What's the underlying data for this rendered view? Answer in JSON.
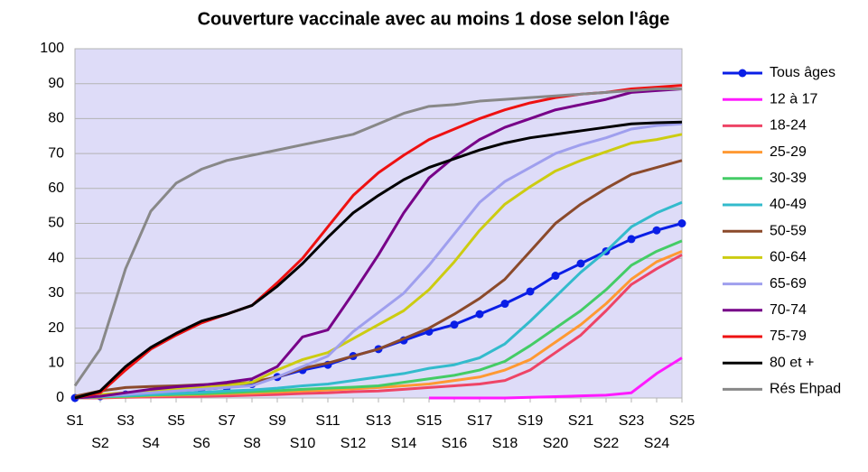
{
  "chart_data": {
    "type": "line",
    "title": "Couverture vaccinale avec au moins 1 dose selon l'âge",
    "categories": [
      "S1",
      "S2",
      "S3",
      "S4",
      "S5",
      "S6",
      "S7",
      "S8",
      "S9",
      "S10",
      "S11",
      "S12",
      "S13",
      "S14",
      "S15",
      "S16",
      "S17",
      "S18",
      "S19",
      "S20",
      "S21",
      "S22",
      "S23",
      "S24",
      "S25"
    ],
    "ylim": [
      0,
      100
    ],
    "yticks": [
      0,
      10,
      20,
      30,
      40,
      50,
      60,
      70,
      80,
      90,
      100
    ],
    "grid": true,
    "legend": "right",
    "plot_background": "#dedcf8",
    "series": [
      {
        "name": "Tous âges",
        "color": "#0a1ee6",
        "marker": "circle",
        "values": [
          0,
          0.5,
          1,
          1.5,
          2,
          2.5,
          3,
          4,
          6,
          8,
          9.5,
          12,
          14,
          16.5,
          19,
          21,
          24,
          27,
          30.5,
          35,
          38.5,
          42,
          45.5,
          48,
          50
        ]
      },
      {
        "name": "12 à 17",
        "color": "#ff1aff",
        "values": [
          null,
          null,
          null,
          null,
          null,
          null,
          null,
          null,
          null,
          null,
          null,
          null,
          null,
          null,
          0,
          0,
          0,
          0,
          0.2,
          0.4,
          0.6,
          0.8,
          1.5,
          7,
          11.5
        ]
      },
      {
        "name": "18-24",
        "color": "#ee4466",
        "values": [
          0,
          0,
          0.2,
          0.3,
          0.4,
          0.5,
          0.6,
          0.8,
          1,
          1.3,
          1.5,
          1.8,
          2,
          2.5,
          3,
          3.5,
          4,
          5,
          8,
          13,
          18,
          25,
          32.5,
          37,
          41
        ]
      },
      {
        "name": "25-29",
        "color": "#ff9933",
        "values": [
          0,
          0.2,
          0.4,
          0.6,
          0.8,
          1,
          1.2,
          1.4,
          1.7,
          2,
          2.3,
          2.6,
          3,
          3.5,
          4,
          5,
          6,
          8,
          11,
          16,
          21,
          27,
          34,
          39,
          42
        ]
      },
      {
        "name": "30-39",
        "color": "#44cc66",
        "values": [
          0,
          0.3,
          0.5,
          0.8,
          1,
          1.2,
          1.5,
          1.8,
          2.1,
          2.5,
          2.8,
          3.1,
          3.5,
          4.5,
          5.5,
          6.5,
          8,
          10.5,
          15,
          20,
          25,
          31,
          38,
          42,
          45
        ]
      },
      {
        "name": "40-49",
        "color": "#33bbcc",
        "values": [
          0,
          0.4,
          0.7,
          1,
          1.3,
          1.6,
          2,
          2.3,
          2.8,
          3.5,
          4,
          5,
          6,
          7,
          8.5,
          9.5,
          11.5,
          15.5,
          22,
          29,
          36,
          42,
          49,
          53,
          56
        ]
      },
      {
        "name": "50-59",
        "color": "#8b4a2b",
        "values": [
          0.5,
          2,
          3,
          3.3,
          3.5,
          3.8,
          4,
          4.5,
          6,
          8.5,
          10,
          12,
          14,
          17,
          20,
          24,
          28.5,
          34,
          42,
          50,
          55.5,
          60,
          64,
          66,
          68
        ]
      },
      {
        "name": "60-64",
        "color": "#cccc11",
        "values": [
          0,
          1,
          1.5,
          2,
          2.5,
          3,
          3.5,
          4.5,
          8,
          11,
          13,
          17,
          21,
          25,
          31,
          39,
          48,
          55.5,
          60.5,
          65,
          68,
          70.5,
          73,
          74,
          75.5
        ]
      },
      {
        "name": "65-69",
        "color": "#9f9fee",
        "values": [
          0,
          0.5,
          1,
          1.5,
          2,
          2.5,
          3,
          3.5,
          6,
          9,
          12,
          19,
          24.5,
          30,
          38,
          47,
          56,
          62,
          66,
          70,
          72.5,
          74.5,
          77,
          78,
          78.5
        ]
      },
      {
        "name": "70-74",
        "color": "#770088",
        "values": [
          0,
          0.5,
          1.5,
          2.5,
          3.2,
          3.7,
          4.5,
          5.5,
          9,
          17.5,
          19.5,
          30,
          41,
          53,
          63,
          69,
          74,
          77.5,
          80,
          82.5,
          84,
          85.5,
          87.5,
          88,
          88.5
        ]
      },
      {
        "name": "75-79",
        "color": "#ee1111",
        "values": [
          0,
          1.5,
          8,
          14,
          18,
          21.5,
          24,
          26.5,
          33,
          40,
          49,
          58,
          64.5,
          69.5,
          74,
          77,
          80,
          82.5,
          84.5,
          86,
          87,
          87.5,
          88.5,
          89,
          89.5
        ]
      },
      {
        "name": "80 et +",
        "color": "#000000",
        "values": [
          0,
          2,
          9,
          14.5,
          18.5,
          22,
          24,
          26.5,
          32,
          38.5,
          46,
          53,
          58,
          62.5,
          66,
          68.5,
          71,
          73,
          74.5,
          75.5,
          76.5,
          77.5,
          78.5,
          78.8,
          79
        ]
      },
      {
        "name": "Rés Ehpad",
        "color": "#888888",
        "values": [
          3.5,
          14,
          37,
          53.5,
          61.5,
          65.5,
          68,
          69.5,
          71,
          72.5,
          74,
          75.5,
          78.5,
          81.5,
          83.5,
          84,
          85,
          85.5,
          86,
          86.5,
          87,
          87.5,
          88,
          88.5,
          88.5
        ]
      }
    ]
  }
}
